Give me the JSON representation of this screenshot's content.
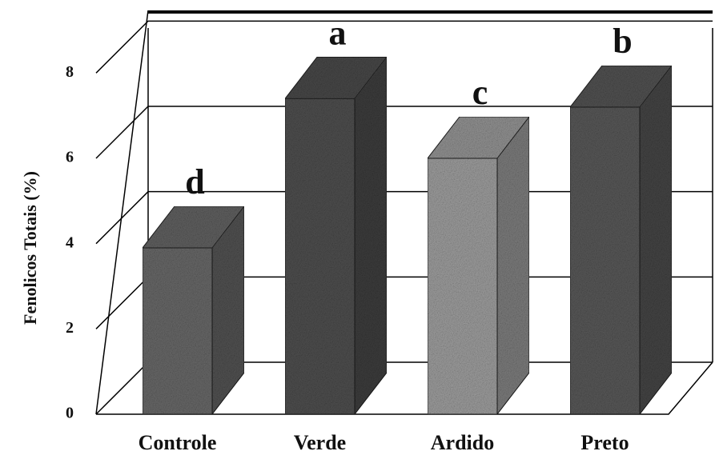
{
  "chart_data": {
    "type": "bar3d",
    "y_label": "Fenolicos Totais (%)",
    "categories": [
      "Controle",
      "Verde",
      "Ardido",
      "Preto"
    ],
    "values": [
      3.9,
      7.4,
      6.0,
      7.2
    ],
    "annotations": [
      "d",
      "a",
      "c",
      "b"
    ],
    "colors": [
      "#6a6a6a",
      "#505050",
      "#a0a0a0",
      "#5a5a5a"
    ],
    "ylim": [
      0,
      9
    ],
    "yticks": [
      0,
      2,
      4,
      6,
      8
    ],
    "grid": true
  }
}
